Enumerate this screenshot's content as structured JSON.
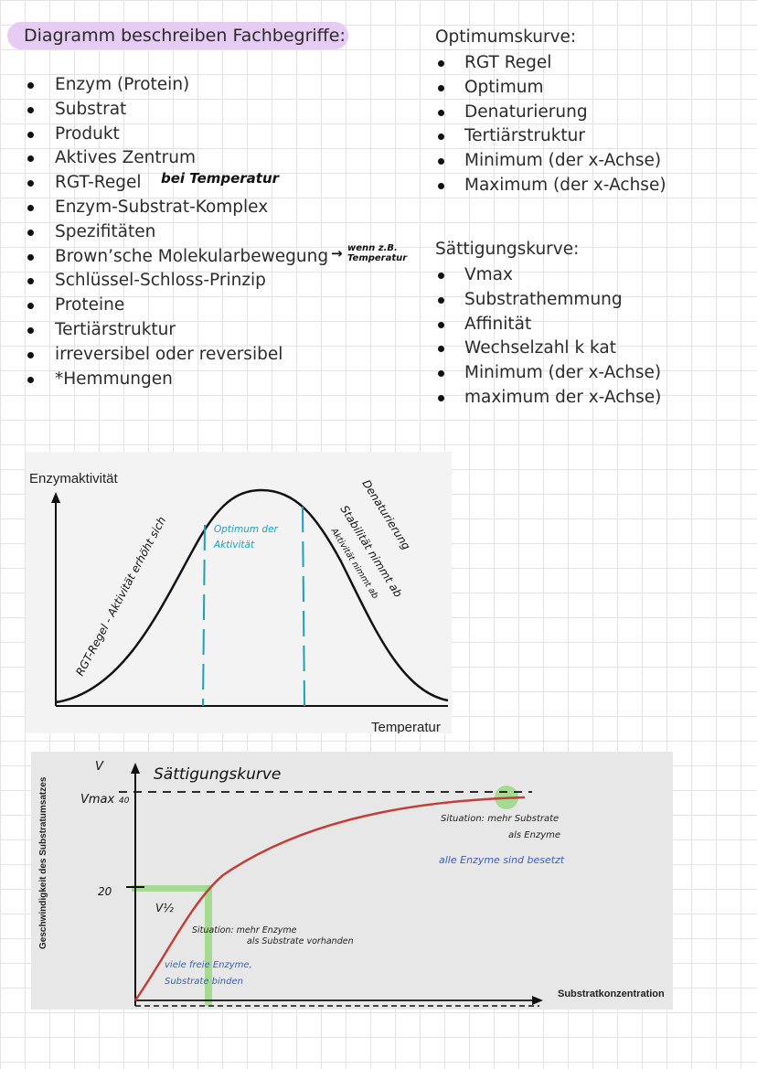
{
  "heading": "Diagramm beschreiben Fachbegriffe:",
  "left_list": [
    "Enzym (Protein)",
    "Substrat",
    "Produkt",
    "Aktives Zentrum",
    "RGT-Regel",
    "Enzym-Substrat-Komplex",
    "Spezifitäten",
    "Brown’sche Molekularbewegung",
    "Schlüssel-Schloss-Prinzip",
    "Proteine",
    "Tertiärstruktur",
    "irreversibel oder reversibel",
    "*Hemmungen"
  ],
  "notes": {
    "rgt": "bei Temperatur",
    "brown_arrow": "→",
    "brown_line1": "wenn z.B.",
    "brown_line2": "Temperatur"
  },
  "right_section1": {
    "title": "Optimumskurve:",
    "items": [
      "RGT Regel",
      "Optimum",
      "Denaturierung",
      "Tertiärstruktur",
      "Minimum (der x-Achse)",
      "Maximum (der x-Achse)"
    ]
  },
  "right_section2": {
    "title": "Sättigungskurve:",
    "items": [
      "Vmax",
      "Substrathemmung",
      "Affinität",
      "Wechselzahl k kat",
      "Minimum (der x-Achse)",
      "maximum der x-Achse)"
    ]
  },
  "chart_data": [
    {
      "type": "line",
      "ylabel": "Enzymaktivität",
      "xlabel": "Temperatur",
      "shape": "bell curve (optimum curve)",
      "annotations": {
        "rising": "RGT-Regel - Aktivität erhöht sich",
        "optimum_line1": "Optimum der",
        "optimum_line2": "Aktivität",
        "fall_1": "Denaturierung",
        "fall_2": "Stabilität nimmt ab",
        "fall_3": "Aktivität nimmt ab"
      },
      "colors": {
        "curve": "#111111",
        "optimum": "#1aa0b8"
      }
    },
    {
      "type": "line",
      "title": "Sättigungskurve",
      "ylabel": "Geschwindigkeit des Substratumsatzes",
      "xlabel": "Substratkonzentration",
      "y_axis_letter": "V",
      "vmax_label": "Vmax",
      "vmax_value": "40",
      "half_value": "20",
      "half_label": "V½",
      "shape": "saturation curve approaching Vmax",
      "annotations": {
        "top_black_1": "Situation: mehr Substrate",
        "top_black_2": "als Enzyme",
        "top_blue": "alle Enzyme sind besetzt",
        "mid_black_1": "Situation: mehr Enzyme",
        "mid_black_2": "als Substrate vorhanden",
        "low_blue_1": "viele freie Enzyme,",
        "low_blue_2": "Substrate binden"
      },
      "colors": {
        "curve": "#c0403a",
        "highlight": "#9fd88a",
        "note_blue": "#3a5fb0"
      }
    }
  ]
}
